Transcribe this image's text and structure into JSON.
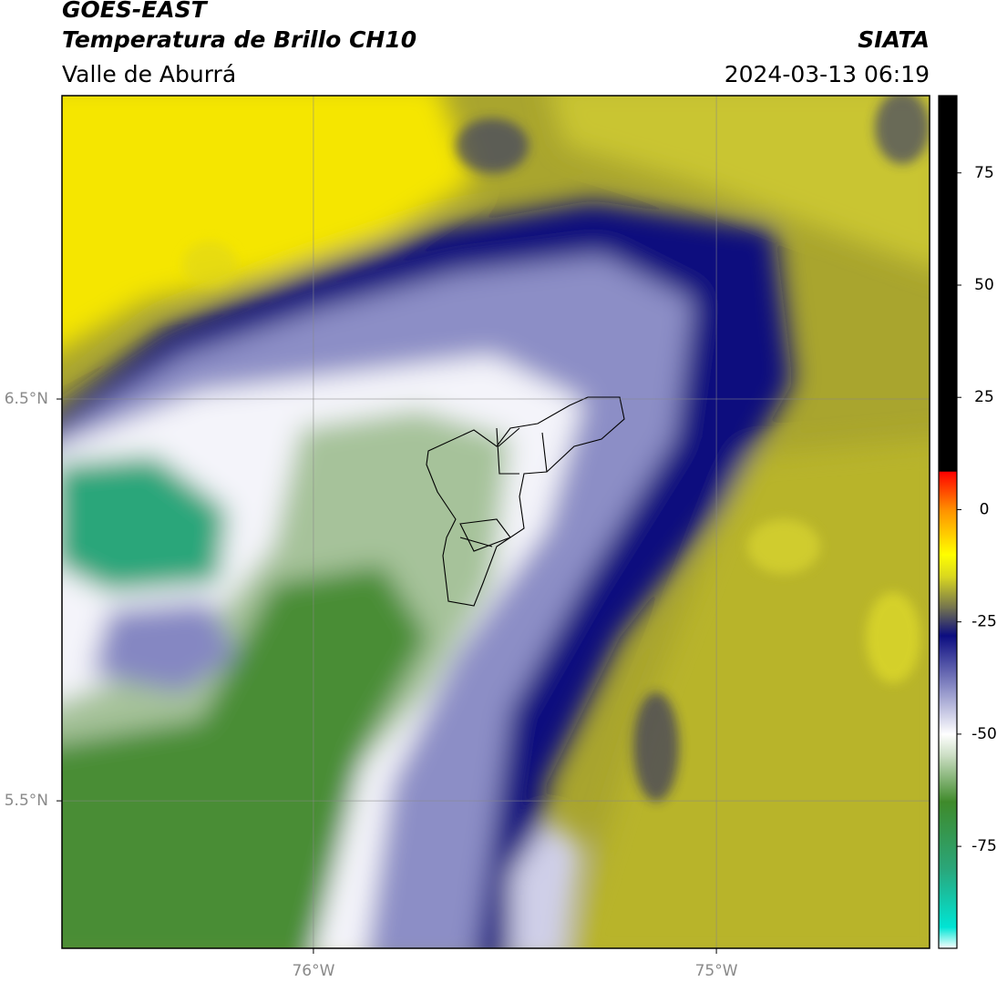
{
  "chart_data": {
    "type": "map",
    "title": "GOES-EAST",
    "subtitle": "Temperatura de Brillo CH10",
    "region": "Valle de Aburrá",
    "source": "SIATA",
    "datetime": "2024-03-13 06:19",
    "xlim": [
      -76.624,
      -74.471
    ],
    "ylim": [
      5.133,
      7.255
    ],
    "xticks": [
      {
        "value": -76,
        "label": "76°W"
      },
      {
        "value": -75,
        "label": "75°W"
      }
    ],
    "yticks": [
      {
        "value": 6.5,
        "label": "6.5°N"
      },
      {
        "value": 5.5,
        "label": "5.5°N"
      }
    ],
    "grid": true,
    "colorbar": {
      "lim": [
        -97.7,
        92.2
      ],
      "ticks": [
        75,
        50,
        25,
        0,
        -25,
        -50,
        -75
      ],
      "stops": [
        {
          "value": -97.7,
          "color": "#ffffff"
        },
        {
          "value": -93,
          "color": "#00e5d5"
        },
        {
          "value": -80,
          "color": "#2aa67a"
        },
        {
          "value": -65,
          "color": "#3f8a2a"
        },
        {
          "value": -55,
          "color": "#c8dcc0"
        },
        {
          "value": -50,
          "color": "#ffffff"
        },
        {
          "value": -40,
          "color": "#8f91c8"
        },
        {
          "value": -28,
          "color": "#0b0c80"
        },
        {
          "value": -22,
          "color": "#707050"
        },
        {
          "value": -15,
          "color": "#d8d620"
        },
        {
          "value": -10,
          "color": "#ffff00"
        },
        {
          "value": 0,
          "color": "#ff9000"
        },
        {
          "value": 8.5,
          "color": "#ff0000"
        },
        {
          "value": 8.6,
          "color": "#000000"
        },
        {
          "value": 92.2,
          "color": "#000000"
        }
      ]
    }
  }
}
